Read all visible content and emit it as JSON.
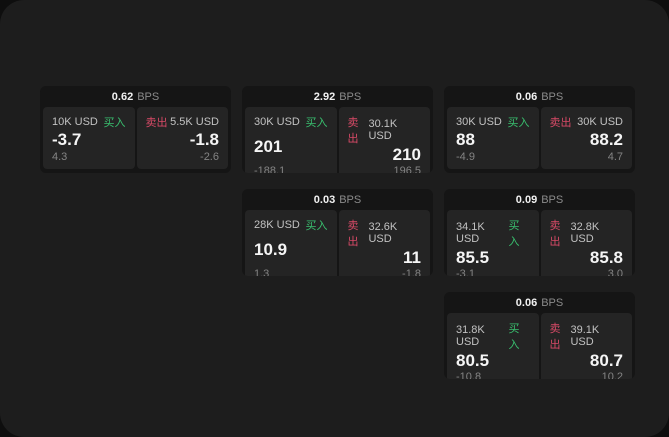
{
  "labels": {
    "bps_unit": "BPS",
    "buy": "买入",
    "sell": "卖出"
  },
  "colors": {
    "backdrop": "#0e0e0e",
    "window_bg": "#1d1d1d",
    "tile_bg": "#151515",
    "panel_bg": "#242424",
    "buy_green": "#39c06f",
    "sell_pink": "#d84a67"
  },
  "cards": [
    {
      "bps": "0.62",
      "row": 1,
      "col": 1,
      "buy": {
        "amount": "10K USD",
        "value": "-3.7",
        "sub": "4.3"
      },
      "sell": {
        "amount": "5.5K USD",
        "value": "-1.8",
        "sub": "-2.6"
      }
    },
    {
      "bps": "2.92",
      "row": 1,
      "col": 2,
      "buy": {
        "amount": "30K USD",
        "value": "201",
        "sub": "-188.1"
      },
      "sell": {
        "amount": "30.1K USD",
        "value": "210",
        "sub": "196.5"
      }
    },
    {
      "bps": "0.06",
      "row": 1,
      "col": 3,
      "buy": {
        "amount": "30K USD",
        "value": "88",
        "sub": "-4.9"
      },
      "sell": {
        "amount": "30K USD",
        "value": "88.2",
        "sub": "4.7"
      }
    },
    {
      "bps": "0.03",
      "row": 2,
      "col": 2,
      "buy": {
        "amount": "28K USD",
        "value": "10.9",
        "sub": "1.3"
      },
      "sell": {
        "amount": "32.6K USD",
        "value": "11",
        "sub": "-1.8"
      }
    },
    {
      "bps": "0.09",
      "row": 2,
      "col": 3,
      "buy": {
        "amount": "34.1K USD",
        "value": "85.5",
        "sub": "-3.1"
      },
      "sell": {
        "amount": "32.8K USD",
        "value": "85.8",
        "sub": "3.0"
      }
    },
    {
      "bps": "0.06",
      "row": 3,
      "col": 3,
      "buy": {
        "amount": "31.8K USD",
        "value": "80.5",
        "sub": "-10.8"
      },
      "sell": {
        "amount": "39.1K USD",
        "value": "80.7",
        "sub": "10.2"
      }
    }
  ]
}
